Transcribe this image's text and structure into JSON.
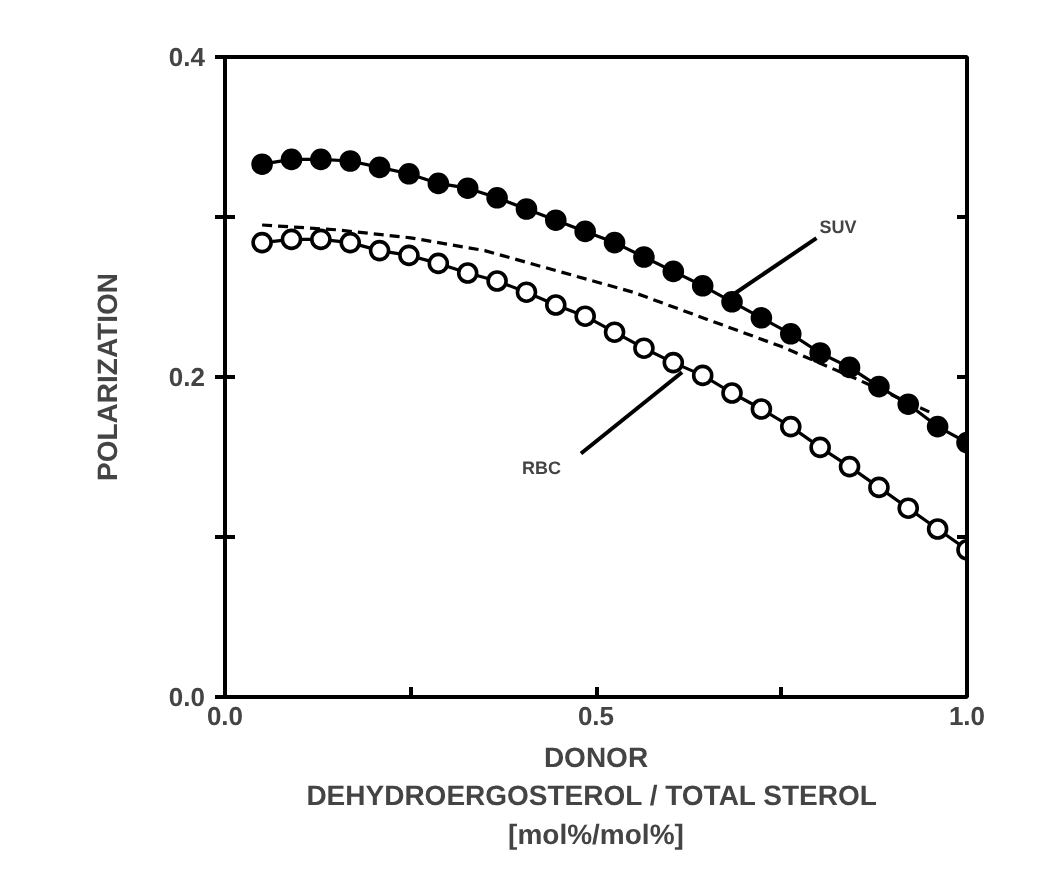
{
  "chart_data": {
    "type": "line",
    "xlabel": "DONOR\nDEHYDROERGOSTEROL  / TOTAL STEROL\n[mol%/mol%]",
    "ylabel": "POLARIZATION",
    "xlim": [
      0,
      1.0
    ],
    "ylim": [
      0,
      0.4
    ],
    "xticks": [
      {
        "value": 0,
        "label": "0.0"
      },
      {
        "value": 0.25,
        "label": null
      },
      {
        "value": 0.5,
        "label": "0.5"
      },
      {
        "value": 0.75,
        "label": null
      },
      {
        "value": 1.0,
        "label": "1.0"
      }
    ],
    "yticks": [
      {
        "value": 0,
        "label": "0.0"
      },
      {
        "value": 0.1,
        "label": null
      },
      {
        "value": 0.2,
        "label": "0.2"
      },
      {
        "value": 0.3,
        "label": null
      },
      {
        "value": 0.4,
        "label": "0.4"
      }
    ],
    "grid": false,
    "x": [
      0.05,
      0.0896,
      0.1292,
      0.1688,
      0.2083,
      0.2479,
      0.2875,
      0.3271,
      0.3667,
      0.4063,
      0.4458,
      0.4854,
      0.525,
      0.5646,
      0.6042,
      0.6438,
      0.6833,
      0.7229,
      0.7625,
      0.8021,
      0.8417,
      0.8813,
      0.9208,
      0.9604,
      1.0
    ],
    "series": [
      {
        "color": "#000000",
        "marker": "circle",
        "values": [
          0.333,
          0.336,
          0.336,
          0.335,
          0.331,
          0.327,
          0.321,
          0.318,
          0.312,
          0.305,
          0.298,
          0.291,
          0.284,
          0.275,
          0.266,
          0.257,
          0.247,
          0.237,
          0.227,
          0.215,
          0.206,
          0.194,
          0.183,
          0.169,
          0.159
        ]
      },
      {
        "color": "#ffffff",
        "marker": "circle",
        "values": [
          0.284,
          0.286,
          0.286,
          0.284,
          0.279,
          0.276,
          0.271,
          0.265,
          0.26,
          0.253,
          0.245,
          0.238,
          0.228,
          0.218,
          0.209,
          0.201,
          0.19,
          0.18,
          0.169,
          0.156,
          0.144,
          0.131,
          0.118,
          0.105,
          0.092
        ]
      },
      {
        "color": "#000000",
        "marker": "none",
        "line_style": "dashed",
        "x": [
          0.05,
          0.15,
          0.25,
          0.35,
          0.45,
          0.55,
          0.65,
          0.75,
          0.85,
          0.95
        ],
        "values": [
          0.295,
          0.292,
          0.287,
          0.279,
          0.266,
          0.253,
          0.236,
          0.219,
          0.199,
          0.178
        ]
      }
    ],
    "annotations": [
      {
        "text": "SUV",
        "x": 0.68,
        "y": 0.25
      },
      {
        "text": "RBC",
        "x": 0.616,
        "y": 0.203
      }
    ]
  }
}
